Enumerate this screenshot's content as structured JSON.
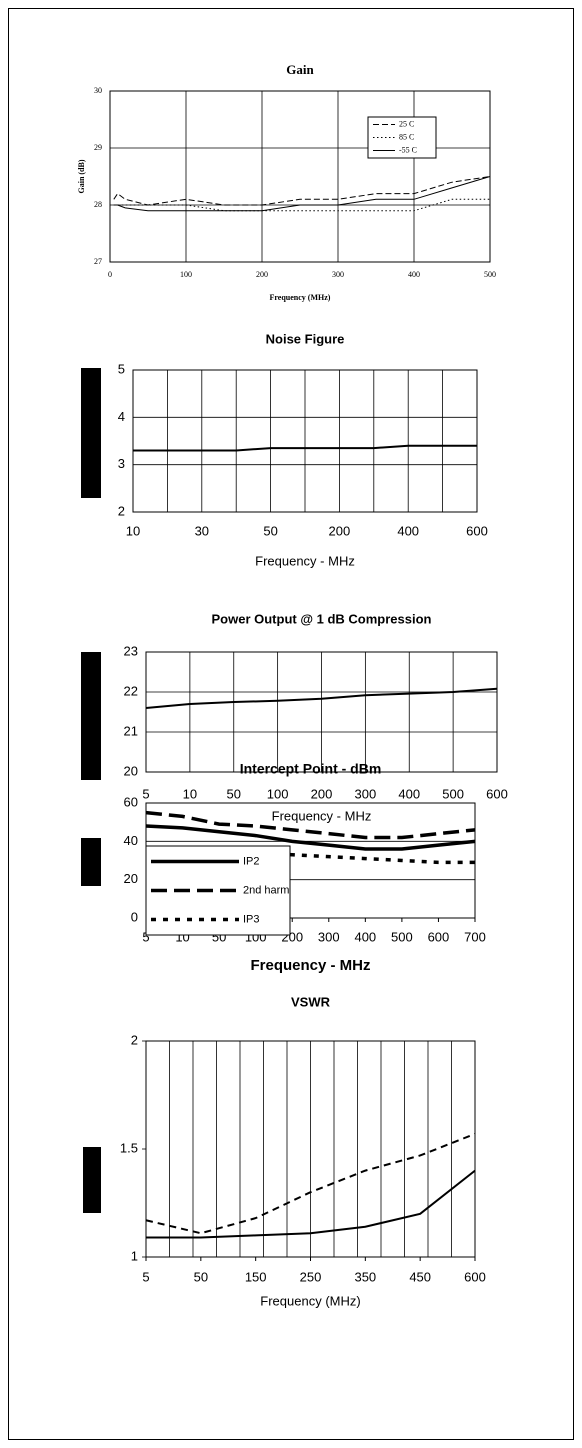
{
  "chart_data": [
    {
      "type": "line",
      "title": "Gain",
      "x_label": "Frequency (MHz)",
      "y_label": "Gain (dB)",
      "x": [
        5,
        10,
        20,
        50,
        100,
        150,
        200,
        250,
        300,
        350,
        400,
        450,
        500
      ],
      "xlim": [
        0,
        500
      ],
      "xticks": [
        0,
        100,
        200,
        300,
        400,
        500
      ],
      "ylim": [
        27,
        30
      ],
      "yticks": [
        27,
        28,
        29,
        30
      ],
      "grid": "both",
      "legend": "upper right",
      "series": [
        {
          "name": "25 C",
          "color": "#000000",
          "line_style": "dashed",
          "values": [
            28.1,
            28.2,
            28.1,
            28.0,
            28.1,
            28.0,
            28.0,
            28.1,
            28.1,
            28.2,
            28.2,
            28.4,
            28.5
          ]
        },
        {
          "name": "85 C",
          "color": "#000000",
          "line_style": "dotted",
          "values": [
            28.0,
            28.0,
            28.0,
            28.0,
            28.0,
            27.9,
            27.9,
            27.9,
            27.9,
            27.9,
            27.9,
            28.1,
            28.1
          ]
        },
        {
          "name": "-55 C",
          "color": "#000000",
          "line_style": "solid",
          "values": [
            28.0,
            28.0,
            27.95,
            27.9,
            27.9,
            27.9,
            27.9,
            28.0,
            28.0,
            28.1,
            28.1,
            28.3,
            28.5
          ]
        }
      ]
    },
    {
      "type": "line",
      "title": "Noise Figure",
      "x_label": "Frequency - MHz",
      "categories": [
        "10",
        null,
        "30",
        null,
        "50",
        null,
        "200",
        null,
        "400",
        null,
        "600"
      ],
      "ylim": [
        2,
        5
      ],
      "yticks": [
        2,
        3,
        4,
        5
      ],
      "grid": "both",
      "series": [
        {
          "color": "#000000",
          "line_style": "solid",
          "values": [
            3.3,
            3.3,
            3.3,
            3.3,
            3.35,
            3.35,
            3.35,
            3.35,
            3.4,
            3.4,
            3.4
          ]
        }
      ]
    },
    {
      "type": "line",
      "title": "Power Output @ 1 dB Compression",
      "x_label": "Frequency - MHz",
      "categories": [
        "5",
        "10",
        "50",
        "100",
        "200",
        "300",
        "400",
        "500",
        "600"
      ],
      "ylim": [
        20,
        23
      ],
      "yticks": [
        20,
        21,
        22,
        23
      ],
      "grid": "both",
      "series": [
        {
          "color": "#000000",
          "line_style": "solid",
          "values": [
            21.6,
            21.7,
            21.75,
            21.78,
            21.83,
            21.92,
            21.96,
            22.0,
            22.08
          ]
        }
      ]
    },
    {
      "type": "line",
      "title": "Intercept Point - dBm",
      "x_label": "Frequency - MHz",
      "categories": [
        "5",
        "10",
        "50",
        "100",
        "200",
        "300",
        "400",
        "500",
        "600",
        "700"
      ],
      "ylim": [
        0,
        60
      ],
      "yticks": [
        0,
        20,
        40,
        60
      ],
      "grid": "y",
      "legend": "lower left",
      "series": [
        {
          "name": "IP2",
          "color": "#000000",
          "line_style": "solid",
          "values": [
            48,
            47,
            45,
            43,
            40,
            38,
            36,
            36,
            38,
            40
          ]
        },
        {
          "name": "2nd harm",
          "color": "#000000",
          "line_style": "dashed",
          "values": [
            55,
            53,
            49,
            48,
            46,
            44,
            42,
            42,
            44,
            46
          ]
        },
        {
          "name": "IP3",
          "color": "#000000",
          "line_style": "dotted",
          "values": [
            36,
            35,
            34,
            34,
            33,
            32,
            31,
            30,
            29,
            29
          ]
        }
      ]
    },
    {
      "type": "line",
      "title": "VSWR",
      "x_label": "Frequency (MHz)",
      "categories": [
        "5",
        "50",
        "150",
        "250",
        "350",
        "450",
        "600"
      ],
      "ylim": [
        1,
        2
      ],
      "yticks": [
        1,
        1.5,
        2
      ],
      "grid": "x",
      "series": [
        {
          "color": "#000000",
          "line_style": "solid",
          "values": [
            1.09,
            1.09,
            1.1,
            1.11,
            1.14,
            1.2,
            1.4
          ]
        },
        {
          "color": "#000000",
          "line_style": "dashed",
          "values": [
            1.17,
            1.11,
            1.18,
            1.3,
            1.4,
            1.47,
            1.57
          ]
        }
      ]
    }
  ]
}
